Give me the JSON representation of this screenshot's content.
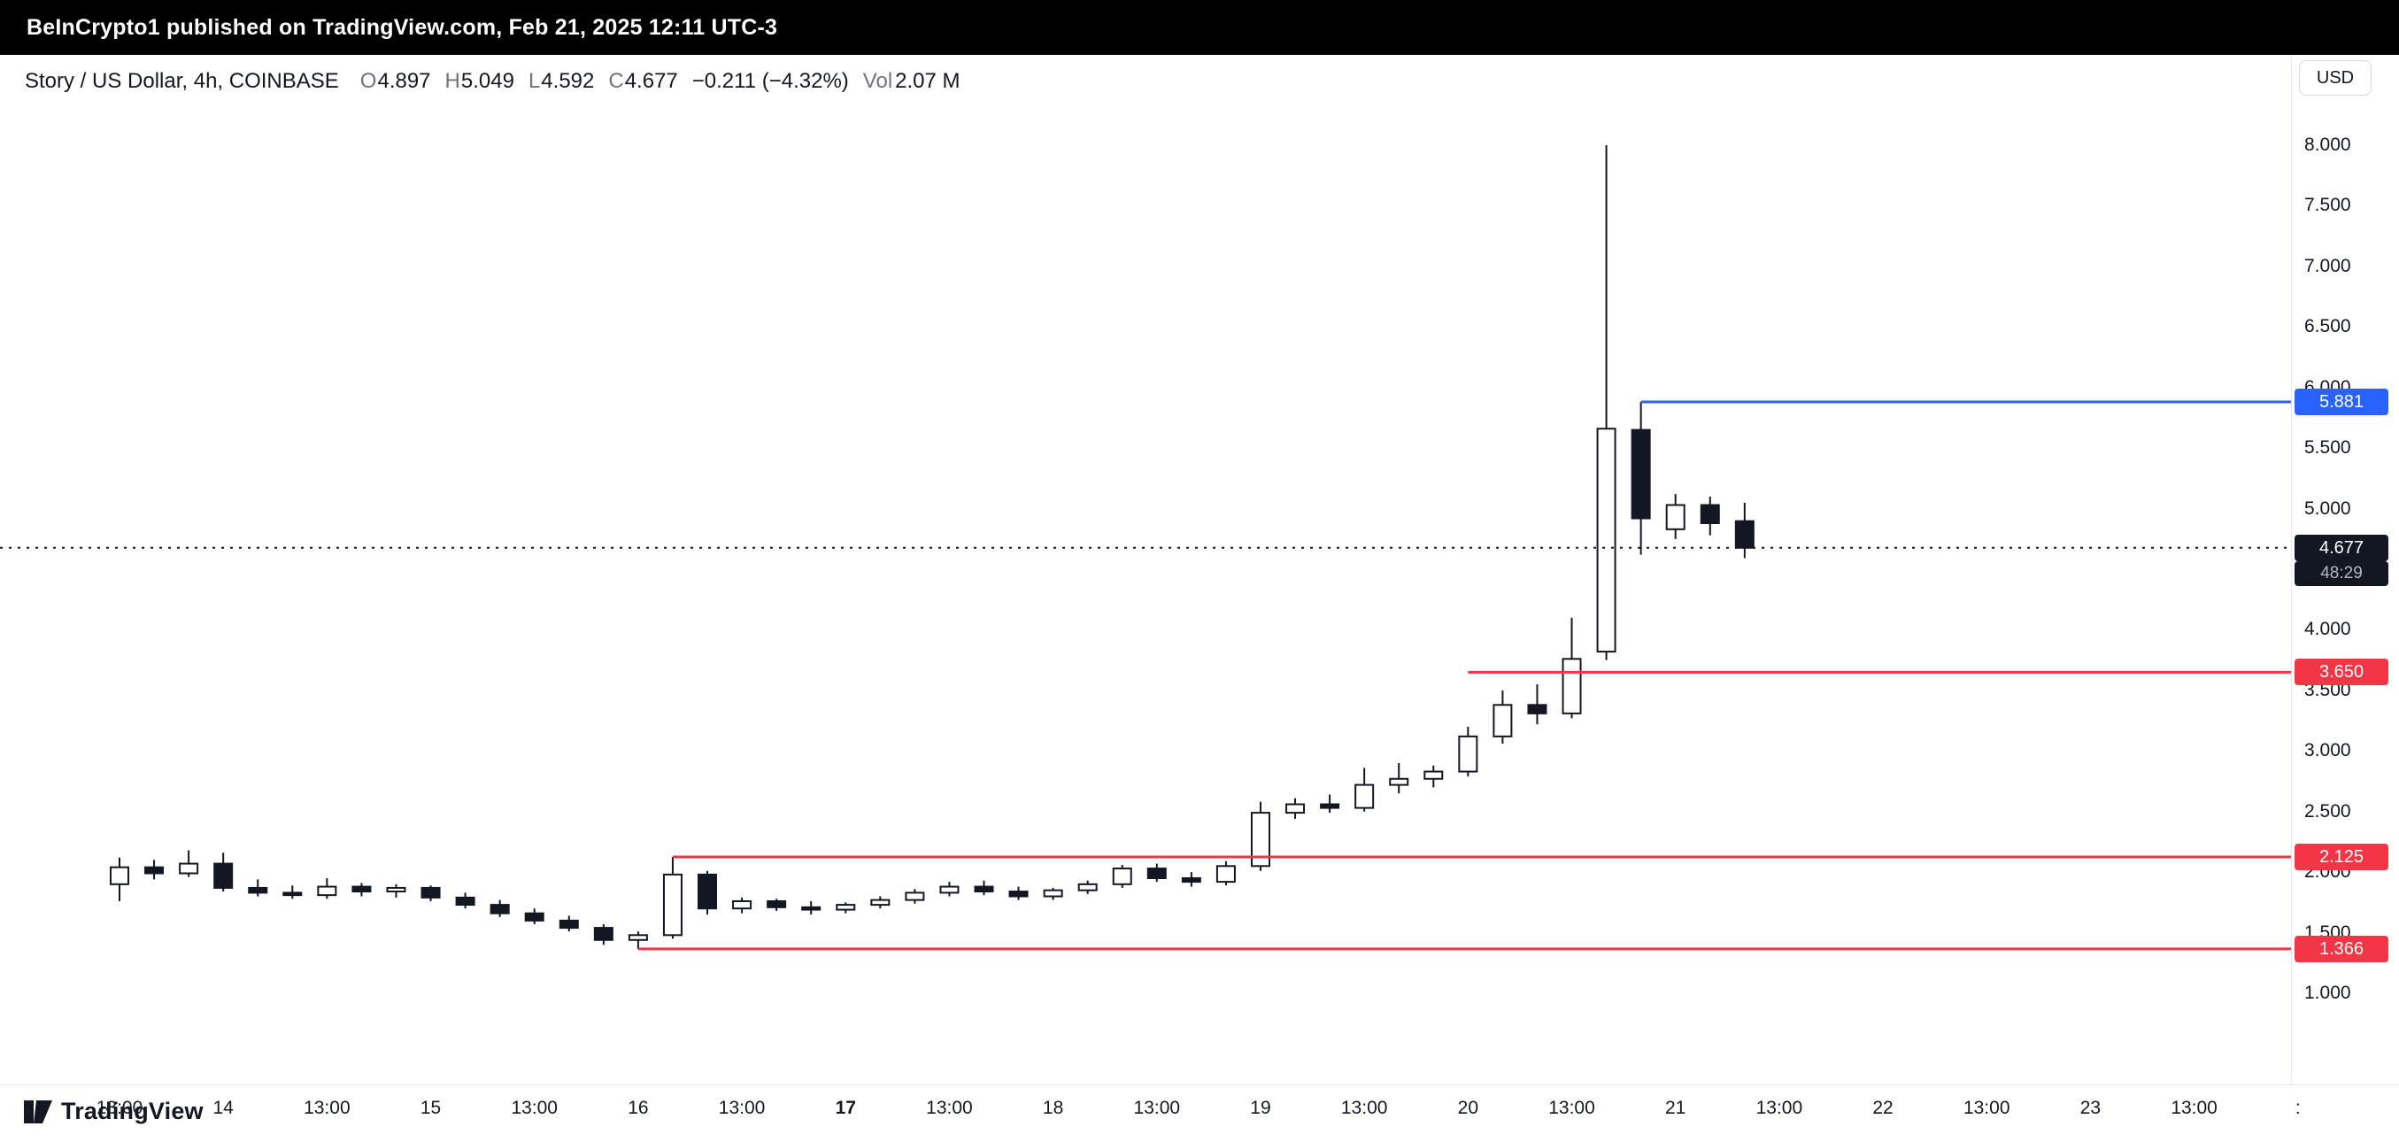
{
  "banner": {
    "text": "BeInCrypto1 published on TradingView.com, Feb 21, 2025 12:11 UTC-3"
  },
  "header": {
    "symbol": "Story / US Dollar, 4h, COINBASE",
    "ohlc": [
      {
        "label": "O",
        "value": "4.897"
      },
      {
        "label": "H",
        "value": "5.049"
      },
      {
        "label": "L",
        "value": "4.592"
      },
      {
        "label": "C",
        "value": "4.677"
      }
    ],
    "change": "−0.211 (−4.32%)",
    "vol_label": "Vol",
    "vol_value": "2.07 M"
  },
  "currency_button": {
    "label": "USD"
  },
  "watermark": {
    "text": "TradingView"
  },
  "chart_data": {
    "type": "candlestick",
    "title": "Story / US Dollar, 4h, COINBASE",
    "interval": "4h",
    "exchange": "COINBASE",
    "grid": "off",
    "ylim": [
      1.0,
      8.0
    ],
    "candle_up_color": "#ffffff",
    "candle_down_color": "#131722",
    "price_ticks": [
      "8.000",
      "7.500",
      "7.000",
      "6.500",
      "6.000",
      "5.500",
      "5.000",
      "4.500",
      "4.000",
      "3.500",
      "3.000",
      "2.500",
      "2.000",
      "1.500",
      "1.000"
    ],
    "time_labels": [
      {
        "text": "13:00",
        "bar": 0
      },
      {
        "text": "14",
        "bar": 3
      },
      {
        "text": "13:00",
        "bar": 6
      },
      {
        "text": "15",
        "bar": 9
      },
      {
        "text": "13:00",
        "bar": 12
      },
      {
        "text": "16",
        "bar": 15
      },
      {
        "text": "13:00",
        "bar": 18
      },
      {
        "text": "17",
        "bar": 21,
        "bold": true
      },
      {
        "text": "13:00",
        "bar": 24
      },
      {
        "text": "18",
        "bar": 27
      },
      {
        "text": "13:00",
        "bar": 30
      },
      {
        "text": "19",
        "bar": 33
      },
      {
        "text": "13:00",
        "bar": 36
      },
      {
        "text": "20",
        "bar": 39
      },
      {
        "text": "13:00",
        "bar": 42
      },
      {
        "text": "21",
        "bar": 45
      },
      {
        "text": "13:00",
        "bar": 48
      },
      {
        "text": "22",
        "bar": 51
      },
      {
        "text": "13:00",
        "bar": 54
      },
      {
        "text": "23",
        "bar": 57
      },
      {
        "text": "13:00",
        "bar": 60
      },
      {
        "text": ":",
        "bar": 63
      }
    ],
    "candles": [
      [
        1.9,
        2.12,
        1.76,
        2.04
      ],
      [
        2.04,
        2.1,
        1.94,
        1.99
      ],
      [
        1.99,
        2.18,
        1.96,
        2.07
      ],
      [
        2.07,
        2.16,
        1.84,
        1.87
      ],
      [
        1.87,
        1.94,
        1.8,
        1.83
      ],
      [
        1.83,
        1.89,
        1.78,
        1.81
      ],
      [
        1.81,
        1.95,
        1.78,
        1.88
      ],
      [
        1.88,
        1.91,
        1.8,
        1.84
      ],
      [
        1.84,
        1.9,
        1.79,
        1.87
      ],
      [
        1.87,
        1.89,
        1.76,
        1.79
      ],
      [
        1.79,
        1.83,
        1.7,
        1.73
      ],
      [
        1.73,
        1.77,
        1.63,
        1.66
      ],
      [
        1.66,
        1.7,
        1.57,
        1.6
      ],
      [
        1.6,
        1.64,
        1.51,
        1.54
      ],
      [
        1.54,
        1.57,
        1.4,
        1.44
      ],
      [
        1.44,
        1.51,
        1.366,
        1.48
      ],
      [
        1.48,
        2.125,
        1.45,
        1.98
      ],
      [
        1.98,
        2.01,
        1.65,
        1.7
      ],
      [
        1.7,
        1.79,
        1.66,
        1.76
      ],
      [
        1.76,
        1.78,
        1.68,
        1.71
      ],
      [
        1.71,
        1.76,
        1.65,
        1.69
      ],
      [
        1.69,
        1.75,
        1.66,
        1.73
      ],
      [
        1.73,
        1.8,
        1.7,
        1.77
      ],
      [
        1.77,
        1.86,
        1.74,
        1.83
      ],
      [
        1.83,
        1.92,
        1.8,
        1.88
      ],
      [
        1.88,
        1.93,
        1.81,
        1.84
      ],
      [
        1.84,
        1.88,
        1.77,
        1.8
      ],
      [
        1.8,
        1.87,
        1.77,
        1.85
      ],
      [
        1.85,
        1.93,
        1.82,
        1.9
      ],
      [
        1.9,
        2.06,
        1.87,
        2.03
      ],
      [
        2.03,
        2.07,
        1.92,
        1.95
      ],
      [
        1.95,
        2.0,
        1.88,
        1.92
      ],
      [
        1.92,
        2.09,
        1.89,
        2.05
      ],
      [
        2.05,
        2.58,
        2.01,
        2.49
      ],
      [
        2.49,
        2.61,
        2.44,
        2.56
      ],
      [
        2.56,
        2.64,
        2.49,
        2.53
      ],
      [
        2.53,
        2.86,
        2.5,
        2.72
      ],
      [
        2.72,
        2.9,
        2.65,
        2.77
      ],
      [
        2.77,
        2.88,
        2.7,
        2.83
      ],
      [
        2.83,
        3.2,
        2.79,
        3.12
      ],
      [
        3.12,
        3.5,
        3.06,
        3.38
      ],
      [
        3.38,
        3.55,
        3.22,
        3.31
      ],
      [
        3.31,
        4.1,
        3.27,
        3.76
      ],
      [
        3.82,
        8.0,
        3.75,
        5.66
      ],
      [
        5.65,
        5.881,
        4.62,
        4.92
      ],
      [
        4.83,
        5.12,
        4.75,
        5.03
      ],
      [
        5.03,
        5.1,
        4.78,
        4.88
      ],
      [
        4.897,
        5.049,
        4.592,
        4.677
      ]
    ],
    "levels": [
      {
        "price": 5.881,
        "label": "5.881",
        "color": "#2962ff",
        "start_bar": 44
      },
      {
        "price": 3.65,
        "label": "3.650",
        "color": "#f23645",
        "start_bar": 39
      },
      {
        "price": 2.125,
        "label": "2.125",
        "color": "#f23645",
        "start_bar": 16
      },
      {
        "price": 1.366,
        "label": "1.366",
        "color": "#f23645",
        "start_bar": 15
      }
    ],
    "last_price": {
      "price": 4.677,
      "label": "4.677",
      "countdown": "48:29"
    }
  }
}
